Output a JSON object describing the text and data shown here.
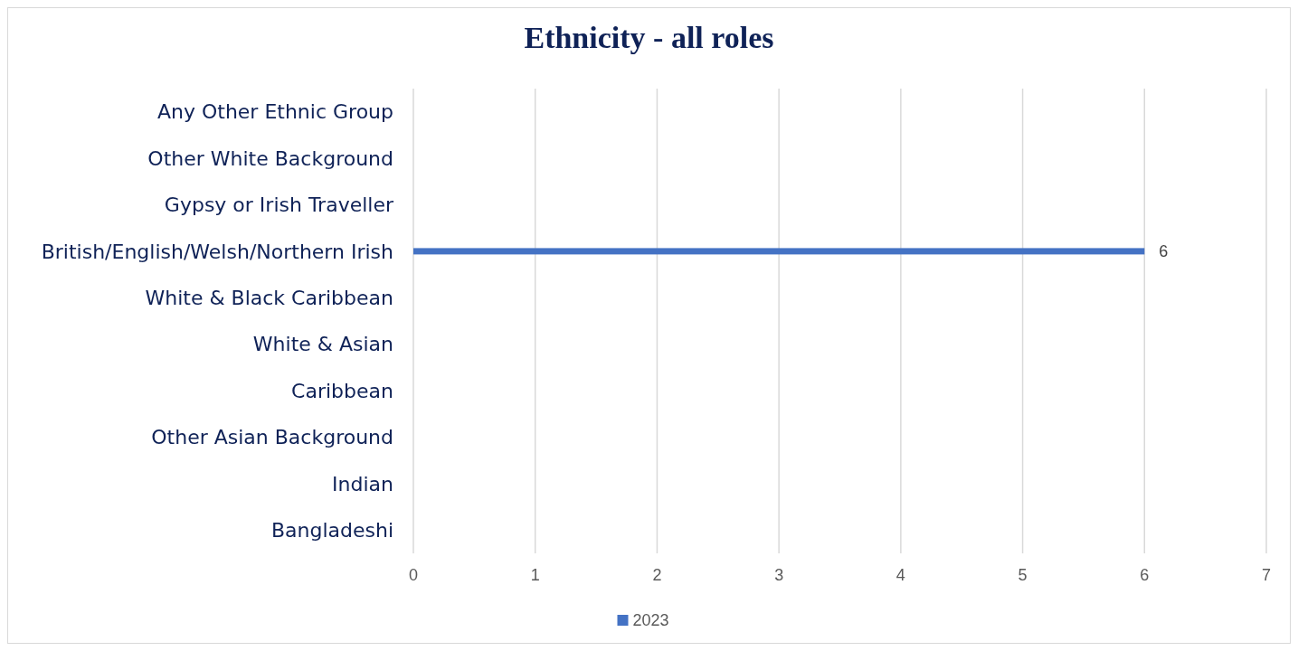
{
  "chart_data": {
    "type": "bar",
    "orientation": "horizontal",
    "title": "Ethnicity - all roles",
    "categories": [
      "Any Other Ethnic Group",
      "Other White Background",
      "Gypsy or Irish Traveller",
      "British/English/Welsh/Northern Irish",
      "White & Black Caribbean",
      "White & Asian",
      "Caribbean",
      "Other Asian Background",
      "Indian",
      "Bangladeshi"
    ],
    "series": [
      {
        "name": "2023",
        "color": "#4472c4",
        "values": [
          null,
          null,
          null,
          6,
          null,
          null,
          null,
          null,
          null,
          null
        ],
        "value_labels": [
          null,
          null,
          null,
          "6",
          null,
          null,
          null,
          null,
          null,
          null
        ]
      }
    ],
    "xlim": [
      0,
      7
    ],
    "xticks": [
      0,
      1,
      2,
      3,
      4,
      5,
      6,
      7
    ],
    "grid": "x",
    "legend": "bottom"
  }
}
